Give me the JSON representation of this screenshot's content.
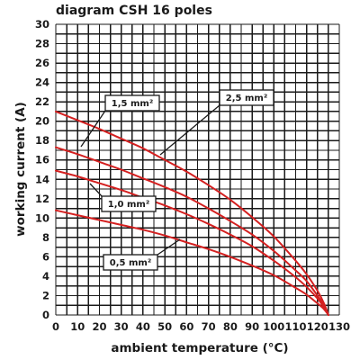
{
  "chart_data": {
    "type": "line",
    "title": "diagram CSH 16 poles",
    "xlabel": "ambient temperature (°C)",
    "ylabel": "working current (A)",
    "xlim": [
      0,
      130
    ],
    "ylim": [
      0,
      30
    ],
    "x_ticks": [
      "0",
      "10",
      "20",
      "30",
      "40",
      "50",
      "60",
      "70",
      "80",
      "90",
      "100",
      "110",
      "120",
      "130"
    ],
    "y_ticks": [
      "0",
      "2",
      "4",
      "6",
      "8",
      "10",
      "12",
      "14",
      "16",
      "18",
      "20",
      "22",
      "24",
      "26",
      "28",
      "30"
    ],
    "grid": true,
    "line_color": "#d42020",
    "series": [
      {
        "name": "2,5 mm²",
        "x": [
          0,
          10,
          20,
          30,
          40,
          50,
          60,
          70,
          80,
          90,
          100,
          110,
          115,
          120,
          123,
          125
        ],
        "y": [
          21.0,
          20.1,
          19.2,
          18.2,
          17.2,
          16.0,
          14.8,
          13.4,
          11.9,
          10.1,
          8.1,
          5.6,
          4.2,
          2.5,
          1.2,
          0
        ]
      },
      {
        "name": "1,5 mm²",
        "x": [
          0,
          10,
          20,
          30,
          40,
          50,
          60,
          70,
          80,
          90,
          100,
          110,
          115,
          120,
          123,
          125
        ],
        "y": [
          17.3,
          16.6,
          15.8,
          15.0,
          14.1,
          13.2,
          12.2,
          11.0,
          9.7,
          8.3,
          6.6,
          4.6,
          3.5,
          2.0,
          1.0,
          0
        ]
      },
      {
        "name": "1,0 mm²",
        "x": [
          0,
          10,
          20,
          30,
          40,
          50,
          60,
          70,
          80,
          90,
          100,
          110,
          115,
          120,
          123,
          125
        ],
        "y": [
          14.9,
          14.3,
          13.6,
          12.9,
          12.1,
          11.3,
          10.4,
          9.4,
          8.3,
          7.1,
          5.6,
          3.9,
          2.9,
          1.7,
          0.8,
          0
        ]
      },
      {
        "name": "0,5 mm²",
        "x": [
          0,
          10,
          20,
          30,
          40,
          50,
          60,
          70,
          80,
          90,
          100,
          110,
          115,
          120,
          123,
          125
        ],
        "y": [
          10.8,
          10.3,
          9.8,
          9.3,
          8.8,
          8.2,
          7.5,
          6.8,
          6.0,
          5.1,
          4.1,
          2.8,
          2.1,
          1.2,
          0.6,
          0
        ]
      }
    ]
  }
}
